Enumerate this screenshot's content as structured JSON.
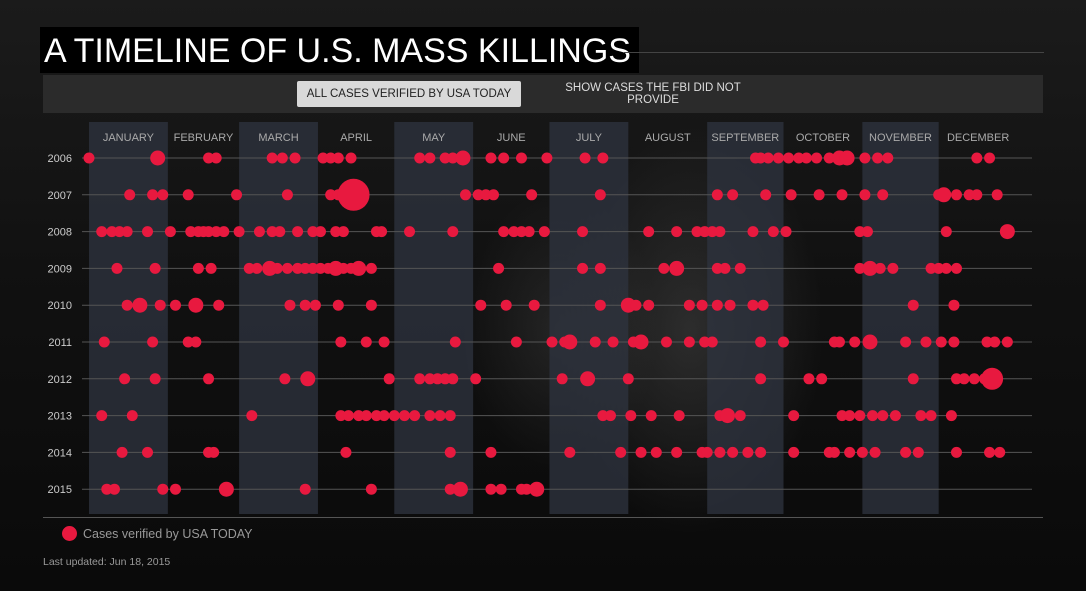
{
  "title": "A TIMELINE OF U.S. MASS KILLINGS",
  "tabs": {
    "active": "ALL CASES VERIFIED BY USA TODAY",
    "inactive": "SHOW CASES THE FBI DID NOT PROVIDE"
  },
  "legend": {
    "label": "Cases verified by USA TODAY",
    "color": "#e8193f"
  },
  "updated": "Last updated: Jun 18, 2015",
  "colors": {
    "dot": "#e8193f",
    "month_band": "#2f3440",
    "row_line": "#555555"
  },
  "chart_data": {
    "type": "scatter",
    "x_axis": "day of year (1-365)",
    "months": [
      "JANUARY",
      "FEBRUARY",
      "MARCH",
      "APRIL",
      "MAY",
      "JUNE",
      "JULY",
      "AUGUST",
      "SEPTEMBER",
      "OCTOBER",
      "NOVEMBER",
      "DECEMBER"
    ],
    "years": [
      "2006",
      "2007",
      "2008",
      "2009",
      "2010",
      "2011",
      "2012",
      "2013",
      "2014",
      "2015"
    ],
    "series": [
      {
        "year": "2006",
        "points": [
          [
            1,
            1
          ],
          [
            28,
            2
          ],
          [
            48,
            1
          ],
          [
            51,
            1
          ],
          [
            73,
            1
          ],
          [
            77,
            1
          ],
          [
            82,
            1
          ],
          [
            93,
            1
          ],
          [
            96,
            1
          ],
          [
            99,
            1
          ],
          [
            104,
            1
          ],
          [
            131,
            1
          ],
          [
            135,
            1
          ],
          [
            141,
            1
          ],
          [
            144,
            1
          ],
          [
            148,
            2
          ],
          [
            159,
            1
          ],
          [
            164,
            1
          ],
          [
            171,
            1
          ],
          [
            181,
            1
          ],
          [
            196,
            1
          ],
          [
            203,
            1
          ],
          [
            263,
            1
          ],
          [
            265,
            1
          ],
          [
            268,
            1
          ],
          [
            272,
            1
          ],
          [
            276,
            1
          ],
          [
            280,
            1
          ],
          [
            283,
            1
          ],
          [
            287,
            1
          ],
          [
            292,
            1
          ],
          [
            296,
            2
          ],
          [
            299,
            2
          ],
          [
            306,
            1
          ],
          [
            311,
            1
          ],
          [
            315,
            1
          ],
          [
            350,
            1
          ],
          [
            355,
            1
          ]
        ]
      },
      {
        "year": "2007",
        "points": [
          [
            17,
            1
          ],
          [
            26,
            1
          ],
          [
            30,
            1
          ],
          [
            40,
            1
          ],
          [
            59,
            1
          ],
          [
            79,
            1
          ],
          [
            96,
            1
          ],
          [
            99,
            1
          ],
          [
            105,
            4
          ],
          [
            149,
            1
          ],
          [
            154,
            1
          ],
          [
            157,
            1
          ],
          [
            160,
            1
          ],
          [
            175,
            1
          ],
          [
            202,
            1
          ],
          [
            248,
            1
          ],
          [
            254,
            1
          ],
          [
            267,
            1
          ],
          [
            277,
            1
          ],
          [
            288,
            1
          ],
          [
            297,
            1
          ],
          [
            306,
            1
          ],
          [
            313,
            1
          ],
          [
            335,
            1
          ],
          [
            337,
            2
          ],
          [
            342,
            1
          ],
          [
            347,
            1
          ],
          [
            350,
            1
          ],
          [
            358,
            1
          ]
        ]
      },
      {
        "year": "2008",
        "points": [
          [
            6,
            1
          ],
          [
            10,
            1
          ],
          [
            13,
            1
          ],
          [
            16,
            1
          ],
          [
            24,
            1
          ],
          [
            33,
            1
          ],
          [
            41,
            1
          ],
          [
            44,
            1
          ],
          [
            46,
            1
          ],
          [
            48,
            1
          ],
          [
            51,
            1
          ],
          [
            54,
            1
          ],
          [
            60,
            1
          ],
          [
            68,
            1
          ],
          [
            73,
            1
          ],
          [
            76,
            1
          ],
          [
            83,
            1
          ],
          [
            89,
            1
          ],
          [
            92,
            1
          ],
          [
            98,
            1
          ],
          [
            101,
            1
          ],
          [
            114,
            1
          ],
          [
            116,
            1
          ],
          [
            127,
            1
          ],
          [
            144,
            1
          ],
          [
            164,
            1
          ],
          [
            168,
            1
          ],
          [
            171,
            1
          ],
          [
            174,
            1
          ],
          [
            180,
            1
          ],
          [
            195,
            1
          ],
          [
            221,
            1
          ],
          [
            232,
            1
          ],
          [
            240,
            1
          ],
          [
            243,
            1
          ],
          [
            246,
            1
          ],
          [
            249,
            1
          ],
          [
            262,
            1
          ],
          [
            270,
            1
          ],
          [
            275,
            1
          ],
          [
            304,
            1
          ],
          [
            307,
            1
          ],
          [
            338,
            1
          ],
          [
            362,
            2
          ]
        ]
      },
      {
        "year": "2009",
        "points": [
          [
            12,
            1
          ],
          [
            27,
            1
          ],
          [
            44,
            1
          ],
          [
            49,
            1
          ],
          [
            64,
            1
          ],
          [
            67,
            1
          ],
          [
            72,
            2
          ],
          [
            75,
            1
          ],
          [
            79,
            1
          ],
          [
            83,
            1
          ],
          [
            86,
            1
          ],
          [
            89,
            1
          ],
          [
            92,
            1
          ],
          [
            95,
            1
          ],
          [
            98,
            2
          ],
          [
            101,
            1
          ],
          [
            104,
            1
          ],
          [
            107,
            2
          ],
          [
            112,
            1
          ],
          [
            162,
            1
          ],
          [
            195,
            1
          ],
          [
            202,
            1
          ],
          [
            227,
            1
          ],
          [
            232,
            2
          ],
          [
            248,
            1
          ],
          [
            251,
            1
          ],
          [
            257,
            1
          ],
          [
            304,
            1
          ],
          [
            308,
            2
          ],
          [
            312,
            1
          ],
          [
            317,
            1
          ],
          [
            332,
            1
          ],
          [
            335,
            1
          ],
          [
            338,
            1
          ],
          [
            342,
            1
          ]
        ]
      },
      {
        "year": "2010",
        "points": [
          [
            16,
            1
          ],
          [
            21,
            2
          ],
          [
            29,
            1
          ],
          [
            35,
            1
          ],
          [
            43,
            2
          ],
          [
            52,
            1
          ],
          [
            80,
            1
          ],
          [
            86,
            1
          ],
          [
            90,
            1
          ],
          [
            99,
            1
          ],
          [
            112,
            1
          ],
          [
            155,
            1
          ],
          [
            165,
            1
          ],
          [
            176,
            1
          ],
          [
            202,
            1
          ],
          [
            213,
            2
          ],
          [
            216,
            1
          ],
          [
            221,
            1
          ],
          [
            237,
            1
          ],
          [
            242,
            1
          ],
          [
            248,
            1
          ],
          [
            253,
            1
          ],
          [
            262,
            1
          ],
          [
            266,
            1
          ],
          [
            325,
            1
          ],
          [
            341,
            1
          ]
        ]
      },
      {
        "year": "2011",
        "points": [
          [
            7,
            1
          ],
          [
            26,
            1
          ],
          [
            40,
            1
          ],
          [
            43,
            1
          ],
          [
            100,
            1
          ],
          [
            110,
            1
          ],
          [
            117,
            1
          ],
          [
            145,
            1
          ],
          [
            169,
            1
          ],
          [
            183,
            1
          ],
          [
            188,
            1
          ],
          [
            190,
            2
          ],
          [
            200,
            1
          ],
          [
            207,
            1
          ],
          [
            215,
            1
          ],
          [
            218,
            2
          ],
          [
            228,
            1
          ],
          [
            237,
            1
          ],
          [
            243,
            1
          ],
          [
            246,
            1
          ],
          [
            265,
            1
          ],
          [
            274,
            1
          ],
          [
            294,
            1
          ],
          [
            296,
            1
          ],
          [
            302,
            1
          ],
          [
            308,
            2
          ],
          [
            322,
            1
          ],
          [
            330,
            1
          ],
          [
            336,
            1
          ],
          [
            341,
            1
          ],
          [
            354,
            1
          ],
          [
            357,
            1
          ],
          [
            362,
            1
          ]
        ]
      },
      {
        "year": "2012",
        "points": [
          [
            15,
            1
          ],
          [
            27,
            1
          ],
          [
            48,
            1
          ],
          [
            78,
            1
          ],
          [
            87,
            2
          ],
          [
            119,
            1
          ],
          [
            131,
            1
          ],
          [
            135,
            1
          ],
          [
            138,
            1
          ],
          [
            141,
            1
          ],
          [
            144,
            1
          ],
          [
            153,
            1
          ],
          [
            187,
            1
          ],
          [
            197,
            2
          ],
          [
            213,
            1
          ],
          [
            265,
            1
          ],
          [
            284,
            1
          ],
          [
            289,
            1
          ],
          [
            325,
            1
          ],
          [
            342,
            1
          ],
          [
            345,
            1
          ],
          [
            349,
            1
          ],
          [
            353,
            1
          ],
          [
            356,
            3
          ]
        ]
      },
      {
        "year": "2013",
        "points": [
          [
            6,
            1
          ],
          [
            18,
            1
          ],
          [
            65,
            1
          ],
          [
            100,
            1
          ],
          [
            103,
            1
          ],
          [
            107,
            1
          ],
          [
            110,
            1
          ],
          [
            114,
            1
          ],
          [
            117,
            1
          ],
          [
            121,
            1
          ],
          [
            125,
            1
          ],
          [
            129,
            1
          ],
          [
            135,
            1
          ],
          [
            139,
            1
          ],
          [
            143,
            1
          ],
          [
            203,
            1
          ],
          [
            206,
            1
          ],
          [
            214,
            1
          ],
          [
            222,
            1
          ],
          [
            233,
            1
          ],
          [
            249,
            1
          ],
          [
            252,
            2
          ],
          [
            257,
            1
          ],
          [
            278,
            1
          ],
          [
            297,
            1
          ],
          [
            300,
            1
          ],
          [
            304,
            1
          ],
          [
            309,
            1
          ],
          [
            313,
            1
          ],
          [
            318,
            1
          ],
          [
            328,
            1
          ],
          [
            332,
            1
          ],
          [
            340,
            1
          ]
        ]
      },
      {
        "year": "2014",
        "points": [
          [
            14,
            1
          ],
          [
            24,
            1
          ],
          [
            48,
            1
          ],
          [
            50,
            1
          ],
          [
            102,
            1
          ],
          [
            143,
            1
          ],
          [
            159,
            1
          ],
          [
            190,
            1
          ],
          [
            210,
            1
          ],
          [
            218,
            1
          ],
          [
            224,
            1
          ],
          [
            232,
            1
          ],
          [
            242,
            1
          ],
          [
            244,
            1
          ],
          [
            249,
            1
          ],
          [
            254,
            1
          ],
          [
            260,
            1
          ],
          [
            265,
            1
          ],
          [
            278,
            1
          ],
          [
            292,
            1
          ],
          [
            294,
            1
          ],
          [
            300,
            1
          ],
          [
            305,
            1
          ],
          [
            310,
            1
          ],
          [
            322,
            1
          ],
          [
            327,
            1
          ],
          [
            342,
            1
          ],
          [
            355,
            1
          ],
          [
            359,
            1
          ]
        ]
      },
      {
        "year": "2015",
        "points": [
          [
            8,
            1
          ],
          [
            11,
            1
          ],
          [
            30,
            1
          ],
          [
            35,
            1
          ],
          [
            55,
            2
          ],
          [
            86,
            1
          ],
          [
            112,
            1
          ],
          [
            143,
            1
          ],
          [
            147,
            2
          ],
          [
            159,
            1
          ],
          [
            163,
            1
          ],
          [
            171,
            1
          ],
          [
            173,
            1
          ],
          [
            177,
            2
          ]
        ]
      }
    ]
  }
}
